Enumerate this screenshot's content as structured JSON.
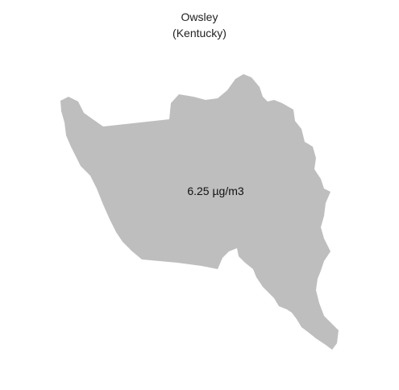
{
  "map": {
    "county_name": "Owsley",
    "state_line": "(Kentucky)",
    "value_text": "6.25 µg/m3",
    "fill_color": "#bebebe"
  }
}
